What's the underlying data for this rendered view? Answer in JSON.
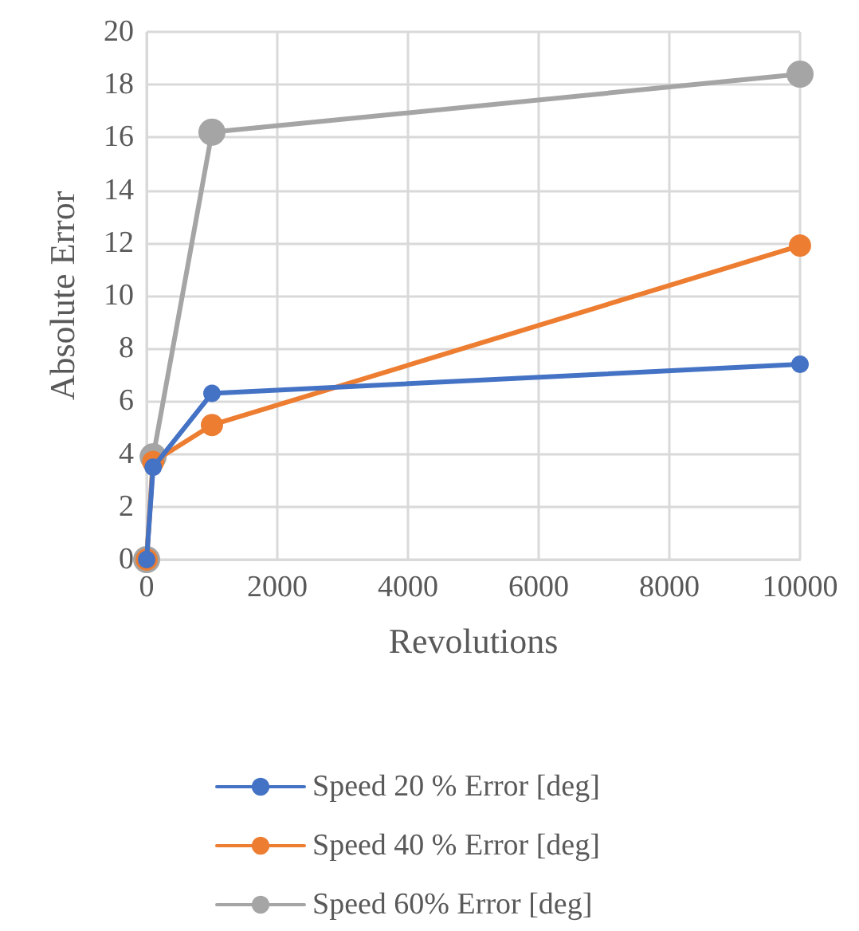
{
  "chart_data": {
    "type": "line",
    "xlabel": "Revolutions",
    "ylabel": "Absolute Error",
    "x": [
      0,
      100,
      1000,
      10000
    ],
    "series": [
      {
        "name": "Speed 20 % Error [deg]",
        "color": "#4472c4",
        "values": [
          0,
          3.5,
          6.3,
          7.4
        ]
      },
      {
        "name": "Speed 40 % Error [deg]",
        "color": "#ed7d31",
        "values": [
          0,
          3.7,
          5.1,
          11.9
        ]
      },
      {
        "name": "Speed 60% Error [deg]",
        "color": "#a5a5a5",
        "values": [
          0,
          3.9,
          16.2,
          18.4
        ]
      }
    ],
    "xlim": [
      0,
      10000
    ],
    "xticks": [
      0,
      2000,
      4000,
      6000,
      8000,
      10000
    ],
    "ylim": [
      0,
      20
    ],
    "yticks": [
      0,
      2,
      4,
      6,
      8,
      10,
      12,
      14,
      16,
      18,
      20
    ],
    "grid": true,
    "legend": "bottom",
    "marker": "circle",
    "line_style": "solid"
  }
}
